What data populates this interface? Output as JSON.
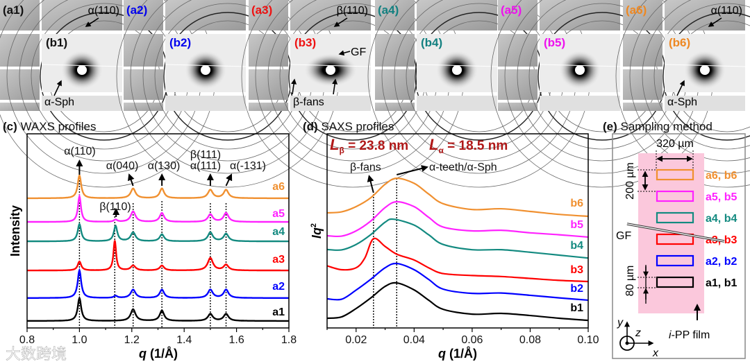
{
  "top_panels": [
    {
      "waxs_label": "(a1)",
      "saxs_label": "(b1)",
      "color": "#111111",
      "waxs_annotation": "α(110)",
      "saxs_annotation": "α-Sph"
    },
    {
      "waxs_label": "(a2)",
      "saxs_label": "(b2)",
      "color": "#0000ee"
    },
    {
      "waxs_label": "(a3)",
      "saxs_label": "(b3)",
      "color": "#ee1111",
      "waxs_annotation": "β(110)",
      "saxs_annotation": "β-fans",
      "saxs_annotation2": "GF"
    },
    {
      "waxs_label": "(a4)",
      "saxs_label": "(b4)",
      "color": "#128080"
    },
    {
      "waxs_label": "(a5)",
      "saxs_label": "(b5)",
      "color": "#ee11ee"
    },
    {
      "waxs_label": "(a6)",
      "saxs_label": "(b6)",
      "color": "#ee8822",
      "waxs_annotation": "α(110)",
      "saxs_annotation": "α-Sph"
    }
  ],
  "chart_data": [
    {
      "type": "line",
      "panel": "(c)",
      "title": "WAXS profiles",
      "xlabel_italic": "q",
      "xlabel_unit": "(1/Å)",
      "ylabel": "Intensity",
      "xlim": [
        0.8,
        1.8
      ],
      "ylim": [
        0,
        100
      ],
      "xticks": [
        "0.8",
        "1.0",
        "1.2",
        "1.4",
        "1.6",
        "1.8"
      ],
      "xtick_values": [
        0.8,
        1.0,
        1.2,
        1.4,
        1.6,
        1.8
      ],
      "reference_lines": [
        1.0,
        1.135,
        1.205,
        1.315,
        1.5,
        1.56
      ],
      "annotations": [
        {
          "text": "α(110)",
          "q": 1.0
        },
        {
          "text": "α(040)",
          "q": 1.205
        },
        {
          "text": "α(130)",
          "q": 1.315
        },
        {
          "text": "β(111)",
          "q": 1.5
        },
        {
          "text": "α(111)",
          "q": 1.5
        },
        {
          "text": "α(-131)",
          "q": 1.56
        },
        {
          "text": "β(110)",
          "q": 1.135
        }
      ],
      "series": [
        {
          "name": "a1",
          "color": "#000000",
          "baseline": 3.6,
          "peaks": [
            [
              1.0,
              11.8,
              0.008
            ],
            [
              1.205,
              6,
              0.011
            ],
            [
              1.315,
              5.3,
              0.01
            ],
            [
              1.5,
              3.6,
              0.011
            ],
            [
              1.56,
              3.6,
              0.011
            ]
          ]
        },
        {
          "name": "a2",
          "color": "#0000ff",
          "baseline": 15.4,
          "peaks": [
            [
              1.0,
              14.3,
              0.008
            ],
            [
              1.138,
              1.1,
              0.008
            ],
            [
              1.205,
              4.3,
              0.011
            ],
            [
              1.315,
              4.3,
              0.01
            ],
            [
              1.5,
              4.3,
              0.011
            ],
            [
              1.56,
              4.3,
              0.011
            ]
          ]
        },
        {
          "name": "a3",
          "color": "#ff0000",
          "baseline": 29.6,
          "peaks": [
            [
              1.0,
              4.6,
              0.008
            ],
            [
              1.135,
              15.4,
              0.006
            ],
            [
              1.205,
              2.5,
              0.011
            ],
            [
              1.315,
              2.5,
              0.01
            ],
            [
              1.5,
              6.4,
              0.012
            ],
            [
              1.56,
              2.9,
              0.011
            ]
          ]
        },
        {
          "name": "a4",
          "color": "#138a80",
          "baseline": 44.6,
          "peaks": [
            [
              1.0,
              8.9,
              0.008
            ],
            [
              1.138,
              7.9,
              0.008
            ],
            [
              1.205,
              4.6,
              0.011
            ],
            [
              1.315,
              3.6,
              0.01
            ],
            [
              1.5,
              4.6,
              0.011
            ],
            [
              1.56,
              3.9,
              0.011
            ]
          ]
        },
        {
          "name": "a5",
          "color": "#ff22ff",
          "baseline": 54.6,
          "peaks": [
            [
              1.0,
              13.2,
              0.007
            ],
            [
              1.138,
              1.1,
              0.008
            ],
            [
              1.205,
              5.4,
              0.011
            ],
            [
              1.315,
              4.6,
              0.01
            ],
            [
              1.5,
              3.9,
              0.011
            ],
            [
              1.56,
              4.6,
              0.011
            ]
          ]
        },
        {
          "name": "a6",
          "color": "#f09030",
          "baseline": 66.8,
          "peaks": [
            [
              1.0,
              11.8,
              0.008
            ],
            [
              1.205,
              5,
              0.011
            ],
            [
              1.315,
              5,
              0.01
            ],
            [
              1.5,
              4.3,
              0.011
            ],
            [
              1.56,
              4.3,
              0.011
            ]
          ]
        }
      ]
    },
    {
      "type": "line",
      "panel": "(d)",
      "title": "SAXS profiles",
      "xlabel_italic": "q",
      "xlabel_unit": "(1/Å)",
      "ylabel_italic": "Iq",
      "ylabel_sup": "2",
      "xlim": [
        0.01,
        0.1
      ],
      "ylim": [
        0,
        100
      ],
      "xticks": [
        "0.02",
        "0.04",
        "0.06",
        "0.08",
        "0.10"
      ],
      "xtick_values": [
        0.02,
        0.04,
        0.06,
        0.08,
        0.1
      ],
      "reference_lines": [
        0.026,
        0.034
      ],
      "long_periods": [
        {
          "symbol": "L",
          "sub": "β",
          "text": "= 23.8 nm"
        },
        {
          "symbol": "L",
          "sub": "α",
          "text": "= 18.5 nm"
        }
      ],
      "long_period_color": "#b01818",
      "annotations": [
        {
          "text": "β-fans",
          "q": 0.026
        },
        {
          "text": "α-teeth/α-Sph",
          "q": 0.034
        }
      ],
      "series": [
        {
          "name": "b1",
          "color": "#000000",
          "points": [
            [
              0.01,
              5
            ],
            [
              0.015,
              5.7
            ],
            [
              0.02,
              10
            ],
            [
              0.025,
              15.4
            ],
            [
              0.03,
              21.4
            ],
            [
              0.034,
              23.2
            ],
            [
              0.04,
              19.6
            ],
            [
              0.045,
              14.3
            ],
            [
              0.05,
              9.6
            ],
            [
              0.06,
              7.1
            ],
            [
              0.07,
              7.5
            ],
            [
              0.08,
              6.4
            ],
            [
              0.09,
              5
            ],
            [
              0.1,
              3.9
            ]
          ]
        },
        {
          "name": "b2",
          "color": "#0000ff",
          "points": [
            [
              0.01,
              15
            ],
            [
              0.015,
              14.8
            ],
            [
              0.02,
              19.5
            ],
            [
              0.025,
              25
            ],
            [
              0.03,
              31
            ],
            [
              0.034,
              33.2
            ],
            [
              0.04,
              30
            ],
            [
              0.045,
              25
            ],
            [
              0.05,
              20
            ],
            [
              0.06,
              17.8
            ],
            [
              0.07,
              18
            ],
            [
              0.08,
              16.8
            ],
            [
              0.09,
              15.5
            ],
            [
              0.1,
              14.3
            ]
          ]
        },
        {
          "name": "b3",
          "color": "#ff0000",
          "points": [
            [
              0.01,
              32
            ],
            [
              0.015,
              30
            ],
            [
              0.02,
              31
            ],
            [
              0.023,
              36
            ],
            [
              0.026,
              46
            ],
            [
              0.03,
              42
            ],
            [
              0.034,
              38
            ],
            [
              0.04,
              35
            ],
            [
              0.045,
              31
            ],
            [
              0.05,
              28
            ],
            [
              0.06,
              27
            ],
            [
              0.07,
              26.5
            ],
            [
              0.08,
              25.5
            ],
            [
              0.09,
              24.5
            ],
            [
              0.1,
              23.9
            ]
          ]
        },
        {
          "name": "b4",
          "color": "#138a80",
          "points": [
            [
              0.01,
              40.4
            ],
            [
              0.015,
              40.2
            ],
            [
              0.02,
              43
            ],
            [
              0.025,
              48
            ],
            [
              0.03,
              54.5
            ],
            [
              0.033,
              56
            ],
            [
              0.04,
              53
            ],
            [
              0.045,
              48
            ],
            [
              0.05,
              43
            ],
            [
              0.06,
              40.3
            ],
            [
              0.07,
              40.3
            ],
            [
              0.08,
              39
            ],
            [
              0.09,
              37.5
            ],
            [
              0.1,
              36
            ]
          ]
        },
        {
          "name": "b5",
          "color": "#ff22ff",
          "points": [
            [
              0.01,
              47.5
            ],
            [
              0.015,
              47.3
            ],
            [
              0.02,
              50
            ],
            [
              0.025,
              55
            ],
            [
              0.03,
              62
            ],
            [
              0.034,
              65
            ],
            [
              0.04,
              62.5
            ],
            [
              0.045,
              57
            ],
            [
              0.05,
              52
            ],
            [
              0.06,
              50
            ],
            [
              0.07,
              50.3
            ],
            [
              0.08,
              49
            ],
            [
              0.09,
              48
            ],
            [
              0.1,
              46.8
            ]
          ]
        },
        {
          "name": "b6",
          "color": "#f09030",
          "points": [
            [
              0.01,
              59.3
            ],
            [
              0.015,
              59.8
            ],
            [
              0.02,
              62.5
            ],
            [
              0.025,
              67
            ],
            [
              0.03,
              74
            ],
            [
              0.034,
              77.1
            ],
            [
              0.04,
              74.5
            ],
            [
              0.045,
              69
            ],
            [
              0.05,
              64
            ],
            [
              0.06,
              61
            ],
            [
              0.07,
              61.4
            ],
            [
              0.08,
              60
            ],
            [
              0.09,
              58.5
            ],
            [
              0.1,
              57.5
            ]
          ]
        }
      ]
    }
  ],
  "sampling": {
    "panel": "(e)",
    "title": "Sampling method",
    "width_label": "320 µm",
    "spacing_label": "200 µm",
    "height_label": "80 µm",
    "fiber_label": "GF",
    "film_label_italic": "i",
    "film_label": "-PP film",
    "axes": {
      "x": "x",
      "y": "y",
      "z": "z"
    },
    "film_color": "#fbc8dc",
    "positions": [
      {
        "label": "a6, b6",
        "color": "#f09030"
      },
      {
        "label": "a5, b5",
        "color": "#ff22ff"
      },
      {
        "label": "a4, b4",
        "color": "#138a80"
      },
      {
        "label": "a3, b3",
        "color": "#ff0000"
      },
      {
        "label": "a2, b2",
        "color": "#0000ff"
      },
      {
        "label": "a1, b1",
        "color": "#000000"
      }
    ]
  },
  "watermark": "大数跨境"
}
